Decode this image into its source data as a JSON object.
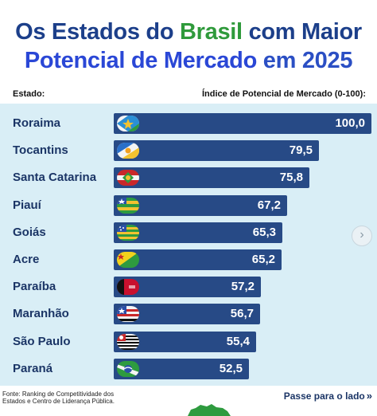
{
  "header": {
    "line1_a": "Os Estados do ",
    "line1_hl": "Brasil",
    "line1_b": " com Maior",
    "line2_hl": "Potencial de Mercado",
    "line2_b": " em 2025"
  },
  "colors": {
    "title_dark": "#1c3f8a",
    "title_green": "#2f9a3b",
    "title_blue": "#2a47d6",
    "bar": "#274a86",
    "panel": "#d9eef6",
    "label": "#1b3566"
  },
  "chart_data": {
    "type": "bar",
    "orientation": "horizontal",
    "xlabel": "Índice de Potencial de Mercado (0-100):",
    "ylabel": "Estado:",
    "categories": [
      "Roraima",
      "Tocantins",
      "Santa Catarina",
      "Piauí",
      "Goiás",
      "Acre",
      "Paraíba",
      "Maranhão",
      "São Paulo",
      "Paraná"
    ],
    "values": [
      100.0,
      79.5,
      75.8,
      67.2,
      65.3,
      65.2,
      57.2,
      56.7,
      55.4,
      52.5
    ],
    "value_labels": [
      "100,0",
      "79,5",
      "75,8",
      "67,2",
      "65,3",
      "65,2",
      "57,2",
      "56,7",
      "55,4",
      "52,5"
    ],
    "xlim": [
      0,
      100
    ],
    "grid": false,
    "legend": "none"
  },
  "flags": [
    "flag-roraima-icon",
    "flag-tocantins-icon",
    "flag-santa-catarina-icon",
    "flag-piaui-icon",
    "flag-goias-icon",
    "flag-acre-icon",
    "flag-paraiba-icon",
    "flag-maranhao-icon",
    "flag-sao-paulo-icon",
    "flag-parana-icon"
  ],
  "footer": {
    "source": "Fonte: Ranking de Competitividade dos Estados e Centro de Liderança Pública.",
    "swipe": "Passe para o lado",
    "swipe_icon": "double-chevron-right-icon"
  },
  "nav": {
    "next_icon": "chevron-right-icon"
  }
}
